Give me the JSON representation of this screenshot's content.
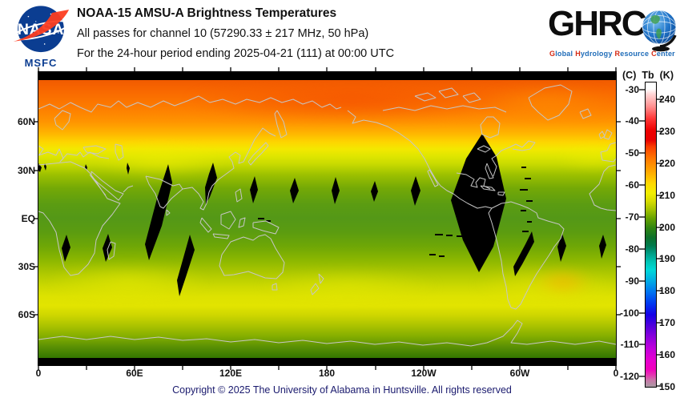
{
  "header": {
    "title": "NOAA-15 AMSU-A Brightness Temperatures",
    "line2": "All passes for channel 10 (57290.33 ± 217 MHz, 50 hPa)",
    "line3": "For the 24-hour period ending 2025-04-21 (111) at 00:00 UTC"
  },
  "nasa_logo": {
    "wordmark": "NASA",
    "caption": "MSFC",
    "circle_color": "#0b3d91",
    "swoosh_color": "#fc3d21"
  },
  "ghrc_logo": {
    "acronym": "GHRC",
    "tagline": {
      "p1i": "G",
      "p1w": "lobal",
      "p2i": "H",
      "p2w": "ydrology",
      "p3i": "R",
      "p3w": "esource",
      "p4i": "C",
      "p4w": "enter"
    },
    "init_color": "#d42a14",
    "word_color": "#1f6cb8"
  },
  "map": {
    "x_ticks": [
      "0",
      "60E",
      "120E",
      "180",
      "120W",
      "60W",
      "0"
    ],
    "y_ticks": [
      "60N",
      "30N",
      "EQ",
      "30S",
      "60S"
    ],
    "no_data_color": "#000000",
    "coastline_color": "#c6c6c6"
  },
  "colorbar": {
    "unit_left": "(C)",
    "title": "Tb",
    "unit_right": "(K)",
    "c_labels": [
      "-30",
      "-40",
      "-50",
      "-60",
      "-70",
      "-80",
      "-90",
      "-100",
      "-110",
      "-120"
    ],
    "k_labels": [
      "240",
      "230",
      "220",
      "210",
      "200",
      "190",
      "180",
      "170",
      "160",
      "150"
    ]
  },
  "footer": {
    "copyright": "Copyright © 2025 The University of Alabama in Huntsville.  All rights reserved"
  },
  "chart_data": {
    "type": "heatmap",
    "title": "NOAA-15 AMSU-A Brightness Temperatures",
    "subtitle": "All passes for channel 10 (57290.33 ± 217 MHz, 50 hPa)",
    "period": "24-hour period ending 2025-04-21 (111) at 00:00 UTC",
    "projection": "equirectangular global map, longitude 0E eastward to 0E, latitude 90N to 90S",
    "x_axis": {
      "label": "longitude",
      "tick_labels": [
        "0",
        "60E",
        "120E",
        "180",
        "120W",
        "60W",
        "0"
      ],
      "range_deg": [
        0,
        360
      ],
      "grid": false
    },
    "y_axis": {
      "label": "latitude",
      "tick_labels": [
        "60N",
        "30N",
        "EQ",
        "30S",
        "60S"
      ],
      "range_deg": [
        -90,
        90
      ],
      "grid": false
    },
    "colorbar": {
      "title": "Tb",
      "left_scale": {
        "unit": "C",
        "ticks": [
          -30,
          -40,
          -50,
          -60,
          -70,
          -80,
          -90,
          -100,
          -110,
          -120
        ]
      },
      "right_scale": {
        "unit": "K",
        "ticks": [
          240,
          230,
          220,
          210,
          200,
          190,
          180,
          170,
          160,
          150
        ]
      },
      "range_k": [
        150,
        245
      ],
      "gradient_top_to_bottom": [
        "white",
        "pink",
        "red",
        "orange",
        "yellow",
        "yellow-green",
        "dark green",
        "teal",
        "cyan",
        "blue",
        "indigo",
        "violet",
        "magenta",
        "gray"
      ]
    },
    "zonal_mean_profile_tb_k": [
      {
        "lat": 85,
        "tb_k": 228
      },
      {
        "lat": 75,
        "tb_k": 227
      },
      {
        "lat": 65,
        "tb_k": 225
      },
      {
        "lat": 55,
        "tb_k": 222
      },
      {
        "lat": 48,
        "tb_k": 219
      },
      {
        "lat": 42,
        "tb_k": 217
      },
      {
        "lat": 35,
        "tb_k": 215
      },
      {
        "lat": 30,
        "tb_k": 213
      },
      {
        "lat": 20,
        "tb_k": 211
      },
      {
        "lat": 10,
        "tb_k": 209
      },
      {
        "lat": 0,
        "tb_k": 209
      },
      {
        "lat": -10,
        "tb_k": 210
      },
      {
        "lat": -20,
        "tb_k": 212
      },
      {
        "lat": -30,
        "tb_k": 214
      },
      {
        "lat": -40,
        "tb_k": 216
      },
      {
        "lat": -46,
        "tb_k": 217
      },
      {
        "lat": -55,
        "tb_k": 214
      },
      {
        "lat": -62,
        "tb_k": 212
      },
      {
        "lat": -70,
        "tb_k": 208
      },
      {
        "lat": -78,
        "tb_k": 205
      },
      {
        "lat": -85,
        "tb_k": 203
      }
    ],
    "no_data_gaps": [
      {
        "desc": "large lens over the Americas",
        "lon": "103W-69W",
        "lat": "55N to 32S"
      },
      {
        "desc": "diagonal lens over India / Indian Ocean",
        "lon": "66E-83E",
        "lat": "33N to 26S"
      },
      {
        "desc": "small swath diamonds near the equator",
        "lons_e": [
          0,
          5,
          30,
          55,
          105,
          133,
          160,
          185,
          210,
          235
        ],
        "lat": "30N to 10N"
      },
      {
        "desc": "southern-hemisphere diamonds",
        "lons_e": [
          16,
          43,
          75,
          92,
          297,
          326,
          352
        ],
        "lat": "10S to 40S"
      },
      {
        "desc": "polar caps unobserved",
        "lat": "poleward of ~85N and ~85S"
      }
    ]
  }
}
